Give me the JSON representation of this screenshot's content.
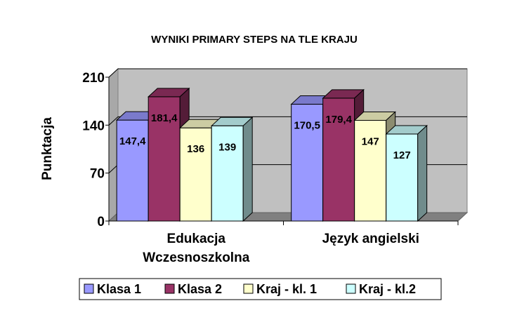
{
  "chart_data": {
    "type": "bar",
    "title": "WYNIKI PRIMARY STEPS NA TLE KRAJU",
    "xlabel": "",
    "ylabel": "Punktacja",
    "ylim": [
      0,
      210
    ],
    "yticks": [
      "0",
      "70",
      "140",
      "210"
    ],
    "grid": true,
    "three_d": true,
    "legend_position": "bottom",
    "categories": [
      [
        "Edukacja",
        "Wczesnoszkolna"
      ],
      [
        "Język angielski"
      ]
    ],
    "series": [
      {
        "name": "Klasa 1",
        "color": "#9999ff",
        "values": [
          147.4,
          170.5
        ],
        "labels": [
          "147,4",
          "170,5"
        ]
      },
      {
        "name": "Klasa 2",
        "color": "#993366",
        "values": [
          181.4,
          179.4
        ],
        "labels": [
          "181,4",
          "179,4"
        ]
      },
      {
        "name": "Kraj - kl. 1",
        "color": "#ffffcc",
        "values": [
          136,
          147
        ],
        "labels": [
          "136",
          "147"
        ]
      },
      {
        "name": "Kraj - kl.2",
        "color": "#ccffff",
        "values": [
          139,
          127
        ],
        "labels": [
          "139",
          "127"
        ]
      }
    ]
  }
}
